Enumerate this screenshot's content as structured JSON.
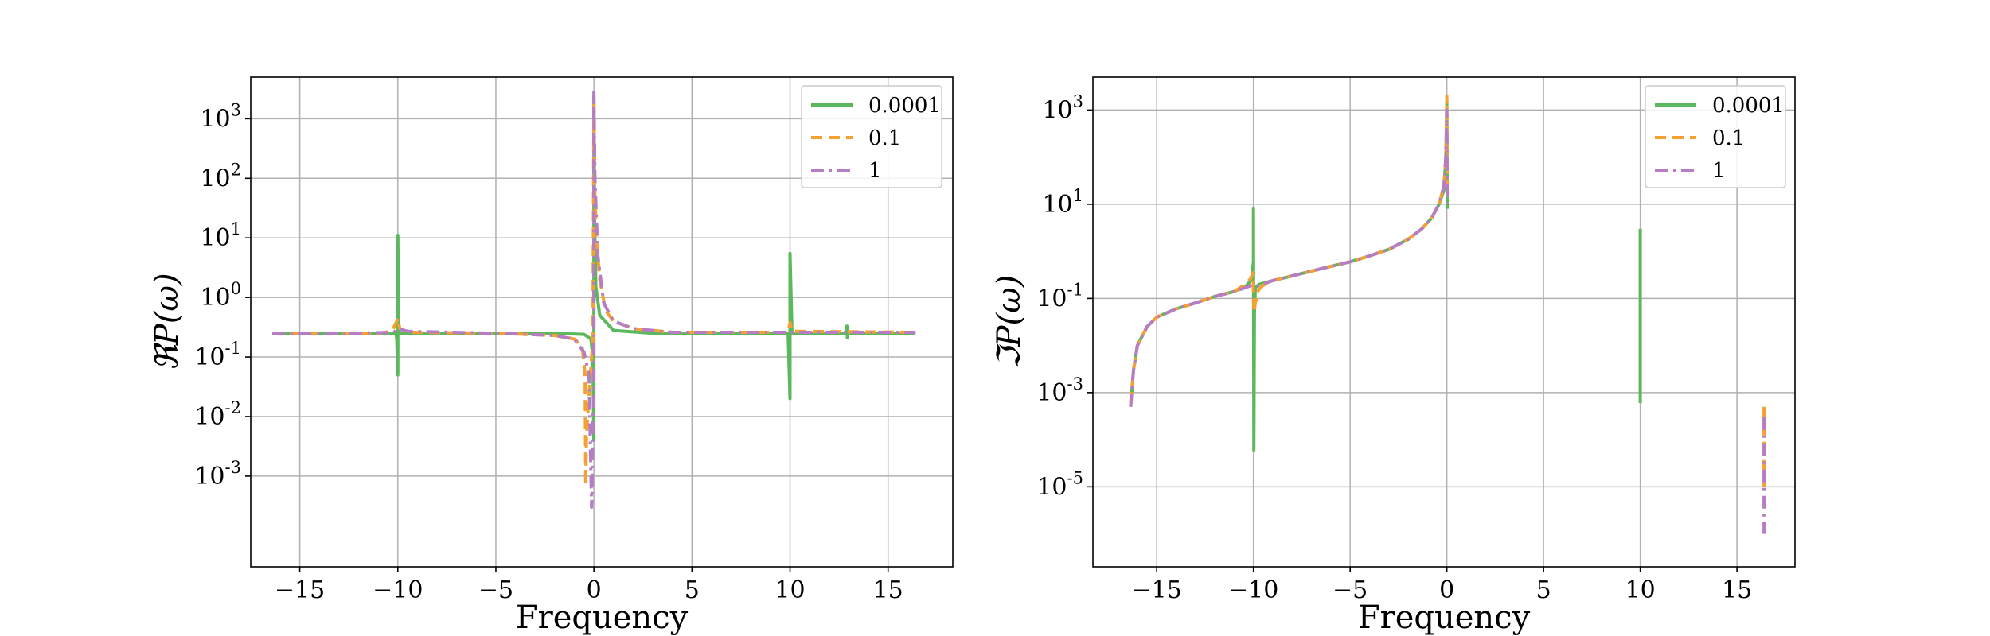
{
  "chart_data": [
    {
      "type": "line",
      "xlabel": "Frequency",
      "ylabel": "ℜP(ω)",
      "yscale": "log",
      "xlim": [
        -17.5,
        18.3
      ],
      "ylim": [
        3e-05,
        5000
      ],
      "xticks": [
        -15,
        -10,
        -5,
        0,
        5,
        10,
        15
      ],
      "xtick_labels": [
        "−15",
        "−10",
        "−5",
        "0",
        "5",
        "10",
        "15"
      ],
      "yticks": [
        {
          "value": 0.001,
          "base": "10",
          "exp": "-3"
        },
        {
          "value": 0.01,
          "base": "10",
          "exp": "-2"
        },
        {
          "value": 0.1,
          "base": "10",
          "exp": "-1"
        },
        {
          "value": 1,
          "base": "10",
          "exp": "0"
        },
        {
          "value": 10,
          "base": "10",
          "exp": "1"
        },
        {
          "value": 100,
          "base": "10",
          "exp": "2"
        },
        {
          "value": 1000,
          "base": "10",
          "exp": "3"
        }
      ],
      "grid": true,
      "legend_position": "top-right",
      "series": [
        {
          "name": "0.0001",
          "color": "#5cb85c",
          "style": "solid",
          "segments": [
            [
              [
                -16.4,
                0.25
              ],
              [
                -10.1,
                0.25
              ],
              [
                -10.05,
                0.2
              ],
              [
                -10.0,
                0.05
              ],
              [
                -10.0,
                11
              ],
              [
                -9.95,
                0.3
              ],
              [
                -9.9,
                0.25
              ],
              [
                -2,
                0.25
              ],
              [
                -0.5,
                0.24
              ],
              [
                -0.15,
                0.2
              ],
              [
                -0.05,
                0.1
              ],
              [
                -0.02,
                0.01
              ],
              [
                0.0,
                0.004
              ],
              [
                0.0,
                2500
              ],
              [
                0.03,
                20
              ],
              [
                0.1,
                1.5
              ],
              [
                0.3,
                0.5
              ],
              [
                1,
                0.28
              ],
              [
                3,
                0.25
              ],
              [
                9.9,
                0.25
              ],
              [
                10.0,
                0.02
              ],
              [
                10.0,
                5.5
              ],
              [
                10.1,
                0.25
              ],
              [
                12.9,
                0.25
              ],
              [
                12.9,
                0.33
              ],
              [
                12.92,
                0.21
              ],
              [
                12.95,
                0.25
              ],
              [
                16.4,
                0.25
              ]
            ]
          ]
        },
        {
          "name": "0.1",
          "color": "#f5a033",
          "style": "dashed",
          "segments": [
            [
              [
                -16.4,
                0.25
              ],
              [
                -11,
                0.25
              ],
              [
                -10.3,
                0.27
              ],
              [
                -10.05,
                0.4
              ],
              [
                -10.0,
                0.45
              ],
              [
                -9.9,
                0.3
              ],
              [
                -9.5,
                0.26
              ],
              [
                -5,
                0.25
              ],
              [
                -2,
                0.23
              ],
              [
                -1,
                0.2
              ],
              [
                -0.6,
                0.15
              ],
              [
                -0.45,
                0.05
              ],
              [
                -0.42,
                0.001
              ],
              [
                -0.42,
                0.0007
              ],
              [
                -0.38,
                0.005
              ],
              [
                -0.2,
                0.04
              ],
              [
                -0.05,
                0.2
              ],
              [
                0.0,
                2000
              ],
              [
                0.05,
                50
              ],
              [
                0.15,
                8
              ],
              [
                0.3,
                2
              ],
              [
                0.6,
                0.6
              ],
              [
                1,
                0.4
              ],
              [
                2,
                0.3
              ],
              [
                4,
                0.26
              ],
              [
                9.9,
                0.26
              ],
              [
                10.0,
                0.38
              ],
              [
                10.1,
                0.27
              ],
              [
                16.4,
                0.26
              ]
            ]
          ]
        },
        {
          "name": "1",
          "color": "#b77dc4",
          "style": "dashdot",
          "segments": [
            [
              [
                -16.4,
                0.25
              ],
              [
                -12.6,
                0.25
              ],
              [
                -12.5,
                0.27
              ],
              [
                -12.4,
                0.25
              ],
              [
                -10.2,
                0.26
              ],
              [
                -10.0,
                0.3
              ],
              [
                -9.5,
                0.27
              ],
              [
                -5,
                0.25
              ],
              [
                -2,
                0.23
              ],
              [
                -1,
                0.2
              ],
              [
                -0.5,
                0.12
              ],
              [
                -0.25,
                0.05
              ],
              [
                -0.12,
                0.0003
              ],
              [
                -0.1,
                0.0005
              ],
              [
                -0.05,
                0.01
              ],
              [
                0.0,
                0.02
              ],
              [
                0.0,
                2800
              ],
              [
                0.05,
                100
              ],
              [
                0.2,
                5
              ],
              [
                0.5,
                0.8
              ],
              [
                1,
                0.4
              ],
              [
                2,
                0.3
              ],
              [
                4,
                0.26
              ],
              [
                16.4,
                0.26
              ]
            ]
          ]
        }
      ]
    },
    {
      "type": "line",
      "xlabel": "Frequency",
      "ylabel": "ℑP(ω)",
      "yscale": "log",
      "xlim": [
        -18.3,
        18.0
      ],
      "ylim": [
        2e-07,
        5000
      ],
      "xticks": [
        -15,
        -10,
        -5,
        0,
        5,
        10,
        15
      ],
      "xtick_labels": [
        "−15",
        "−10",
        "−5",
        "0",
        "5",
        "10",
        "15"
      ],
      "yticks": [
        {
          "value": 1e-05,
          "base": "10",
          "exp": "-5"
        },
        {
          "value": 0.001,
          "base": "10",
          "exp": "-3"
        },
        {
          "value": 0.1,
          "base": "10",
          "exp": "-1"
        },
        {
          "value": 10,
          "base": "10",
          "exp": "1"
        },
        {
          "value": 1000,
          "base": "10",
          "exp": "3"
        }
      ],
      "grid": true,
      "legend_position": "top-right",
      "series": [
        {
          "name": "0.0001",
          "color": "#5cb85c",
          "style": "solid",
          "segments": [
            [
              [
                -16.35,
                0.0005
              ],
              [
                -16.2,
                0.003
              ],
              [
                -16.0,
                0.01
              ],
              [
                -15.5,
                0.025
              ],
              [
                -15,
                0.04
              ],
              [
                -14,
                0.06
              ],
              [
                -13,
                0.08
              ],
              [
                -12,
                0.11
              ],
              [
                -11,
                0.14
              ],
              [
                -10.4,
                0.18
              ],
              [
                -10.1,
                0.25
              ],
              [
                -10.0,
                0.6
              ],
              [
                -10.0,
                8
              ],
              [
                -9.98,
                6e-05
              ],
              [
                -9.95,
                0.05
              ],
              [
                -9.9,
                0.17
              ],
              [
                -9.7,
                0.2
              ],
              [
                -9,
                0.24
              ],
              [
                -8,
                0.3
              ],
              [
                -7,
                0.38
              ],
              [
                -6,
                0.48
              ],
              [
                -5,
                0.6
              ],
              [
                -4,
                0.8
              ],
              [
                -3,
                1.1
              ],
              [
                -2,
                1.8
              ],
              [
                -1.3,
                3
              ],
              [
                -0.8,
                5
              ],
              [
                -0.4,
                10
              ],
              [
                -0.15,
                20
              ],
              [
                -0.05,
                100
              ],
              [
                0.0,
                1500
              ],
              [
                0.02,
                8
              ]
            ],
            [
              [
                10.0,
                0.0006
              ],
              [
                10.0,
                3
              ]
            ]
          ]
        },
        {
          "name": "0.1",
          "color": "#f5a033",
          "style": "dashed",
          "segments": [
            [
              [
                -16.35,
                0.0006
              ],
              [
                -16.2,
                0.003
              ],
              [
                -16.0,
                0.01
              ],
              [
                -15.5,
                0.025
              ],
              [
                -15,
                0.04
              ],
              [
                -14,
                0.06
              ],
              [
                -13,
                0.08
              ],
              [
                -12,
                0.11
              ],
              [
                -11,
                0.14
              ],
              [
                -10.5,
                0.19
              ],
              [
                -10.15,
                0.26
              ],
              [
                -10.02,
                0.35
              ],
              [
                -9.98,
                0.05
              ],
              [
                -9.9,
                0.08
              ],
              [
                -9.75,
                0.15
              ],
              [
                -9.5,
                0.19
              ],
              [
                -9,
                0.24
              ],
              [
                -8,
                0.3
              ],
              [
                -7,
                0.38
              ],
              [
                -6,
                0.48
              ],
              [
                -5,
                0.6
              ],
              [
                -4,
                0.8
              ],
              [
                -3,
                1.1
              ],
              [
                -2,
                1.8
              ],
              [
                -1.3,
                3
              ],
              [
                -0.8,
                5
              ],
              [
                -0.4,
                10
              ],
              [
                -0.15,
                25
              ],
              [
                -0.05,
                100
              ],
              [
                0.0,
                2000
              ],
              [
                0.02,
                20
              ]
            ],
            [
              [
                16.4,
                0.0005
              ],
              [
                16.4,
                1e-05
              ]
            ]
          ]
        },
        {
          "name": "1",
          "color": "#b77dc4",
          "style": "dashdot",
          "segments": [
            [
              [
                -16.35,
                0.0005
              ],
              [
                -16.2,
                0.003
              ],
              [
                -16.0,
                0.01
              ],
              [
                -15.5,
                0.025
              ],
              [
                -15,
                0.04
              ],
              [
                -14,
                0.06
              ],
              [
                -13,
                0.08
              ],
              [
                -12,
                0.11
              ],
              [
                -11,
                0.14
              ],
              [
                -10.4,
                0.17
              ],
              [
                -10.1,
                0.19
              ],
              [
                -9.9,
                0.18
              ],
              [
                -9.5,
                0.2
              ],
              [
                -9,
                0.24
              ],
              [
                -8,
                0.3
              ],
              [
                -7,
                0.38
              ],
              [
                -6,
                0.48
              ],
              [
                -5,
                0.6
              ],
              [
                -4,
                0.8
              ],
              [
                -3,
                1.1
              ],
              [
                -2,
                1.8
              ],
              [
                -1.3,
                3
              ],
              [
                -0.8,
                5
              ],
              [
                -0.4,
                10
              ],
              [
                -0.15,
                25
              ],
              [
                -0.05,
                100
              ],
              [
                0.0,
                1000
              ],
              [
                0.02,
                10
              ]
            ],
            [
              [
                16.4,
                0.0003
              ],
              [
                16.4,
                1e-06
              ]
            ]
          ]
        }
      ]
    }
  ]
}
